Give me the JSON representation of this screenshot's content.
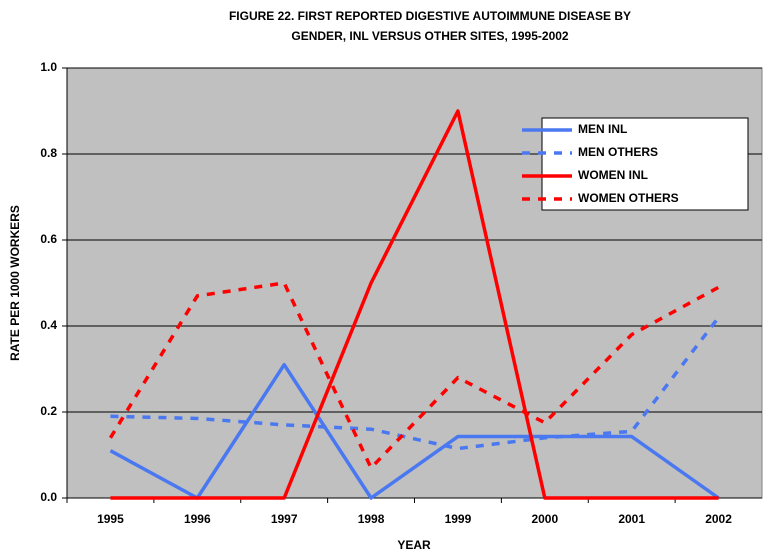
{
  "chart_data": {
    "type": "line",
    "title": [
      "FIGURE 22.  FIRST REPORTED DIGESTIVE AUTOIMMUNE DISEASE BY",
      "GENDER, INL VERSUS OTHER SITES, 1995-2002"
    ],
    "x_label": "YEAR",
    "y_label": "RATE PER 1000 WORKERS",
    "categories": [
      "1995",
      "1996",
      "1997",
      "1998",
      "1999",
      "2000",
      "2001",
      "2002"
    ],
    "series": [
      {
        "name": "MEN INL",
        "color": "#4a78f0",
        "dashed": false,
        "values": [
          0.11,
          0,
          0.31,
          0,
          0.143,
          0.143,
          0.143,
          0
        ]
      },
      {
        "name": "MEN OTHERS",
        "color": "#4a78f0",
        "dashed": true,
        "values": [
          0.19,
          0.185,
          0.17,
          0.16,
          0.115,
          0.14,
          0.155,
          0.42
        ]
      },
      {
        "name": "WOMEN INL",
        "color": "#ff0000",
        "dashed": false,
        "values": [
          0,
          0,
          0,
          0.5,
          0.9,
          0,
          0,
          0
        ]
      },
      {
        "name": "WOMEN OTHERS",
        "color": "#ff0000",
        "dashed": true,
        "values": [
          0.14,
          0.47,
          0.5,
          0.07,
          0.28,
          0.175,
          0.38,
          0.49
        ]
      }
    ],
    "ylim": [
      0,
      1
    ],
    "yticks": [
      {
        "value": 0,
        "label": "0.0"
      },
      0.2,
      0.4,
      0.6,
      0.8,
      {
        "value": 1,
        "label": "1.0"
      }
    ],
    "grid": true,
    "legend": "upper-right",
    "plot_background": "#c0c0c0"
  }
}
